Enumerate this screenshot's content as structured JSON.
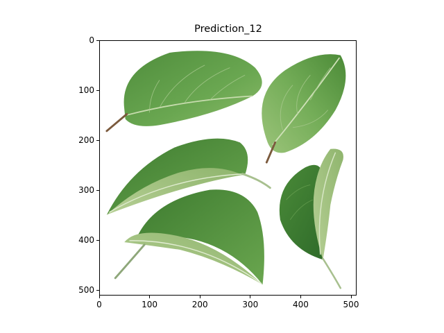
{
  "figure": {
    "title": "Prediction_12",
    "image": {
      "description_icon": "apple-leaves-photo",
      "colors": {
        "leaf_dark": "#3f7f32",
        "leaf_mid": "#66a34f",
        "leaf_light": "#a9c98a",
        "underside": "#c3d6a6",
        "stem": "#7b5a3d"
      }
    },
    "x_axis": {
      "ticks": [
        {
          "value": 0,
          "label": "0"
        },
        {
          "value": 100,
          "label": "100"
        },
        {
          "value": 200,
          "label": "200"
        },
        {
          "value": 300,
          "label": "300"
        },
        {
          "value": 400,
          "label": "400"
        },
        {
          "value": 500,
          "label": "500"
        }
      ],
      "range": [
        0,
        511
      ]
    },
    "y_axis": {
      "ticks": [
        {
          "value": 0,
          "label": "0"
        },
        {
          "value": 100,
          "label": "100"
        },
        {
          "value": 200,
          "label": "200"
        },
        {
          "value": 300,
          "label": "300"
        },
        {
          "value": 400,
          "label": "400"
        },
        {
          "value": 500,
          "label": "500"
        }
      ],
      "range": [
        0,
        511
      ],
      "inverted": true
    }
  }
}
